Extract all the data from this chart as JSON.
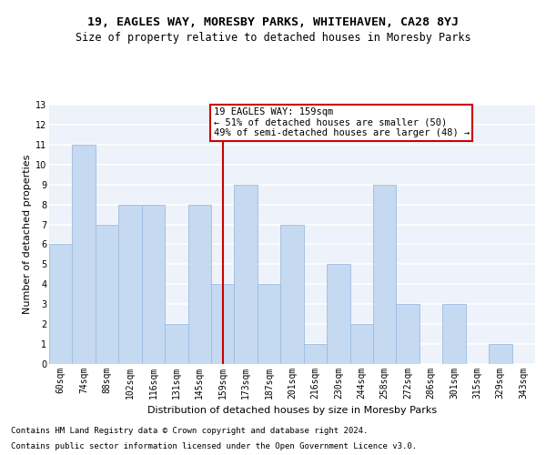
{
  "title1": "19, EAGLES WAY, MORESBY PARKS, WHITEHAVEN, CA28 8YJ",
  "title2": "Size of property relative to detached houses in Moresby Parks",
  "xlabel": "Distribution of detached houses by size in Moresby Parks",
  "ylabel": "Number of detached properties",
  "categories": [
    "60sqm",
    "74sqm",
    "88sqm",
    "102sqm",
    "116sqm",
    "131sqm",
    "145sqm",
    "159sqm",
    "173sqm",
    "187sqm",
    "201sqm",
    "216sqm",
    "230sqm",
    "244sqm",
    "258sqm",
    "272sqm",
    "286sqm",
    "301sqm",
    "315sqm",
    "329sqm",
    "343sqm"
  ],
  "values": [
    6,
    11,
    7,
    8,
    8,
    2,
    8,
    4,
    9,
    4,
    7,
    1,
    5,
    2,
    9,
    3,
    0,
    3,
    0,
    1,
    0
  ],
  "highlight_index": 7,
  "bar_color": "#c5d9f1",
  "bar_edge_color": "#9dbde0",
  "highlight_line_color": "#cc0000",
  "annotation_text": "19 EAGLES WAY: 159sqm\n← 51% of detached houses are smaller (50)\n49% of semi-detached houses are larger (48) →",
  "annotation_box_edge": "#cc0000",
  "ylim": [
    0,
    13
  ],
  "yticks": [
    0,
    1,
    2,
    3,
    4,
    5,
    6,
    7,
    8,
    9,
    10,
    11,
    12,
    13
  ],
  "footer1": "Contains HM Land Registry data © Crown copyright and database right 2024.",
  "footer2": "Contains public sector information licensed under the Open Government Licence v3.0.",
  "background_color": "#eef2fa",
  "grid_color": "#ffffff",
  "title1_fontsize": 9.5,
  "title2_fontsize": 8.5,
  "xlabel_fontsize": 8,
  "ylabel_fontsize": 8,
  "tick_fontsize": 7,
  "footer_fontsize": 6.5,
  "annotation_fontsize": 7.5
}
